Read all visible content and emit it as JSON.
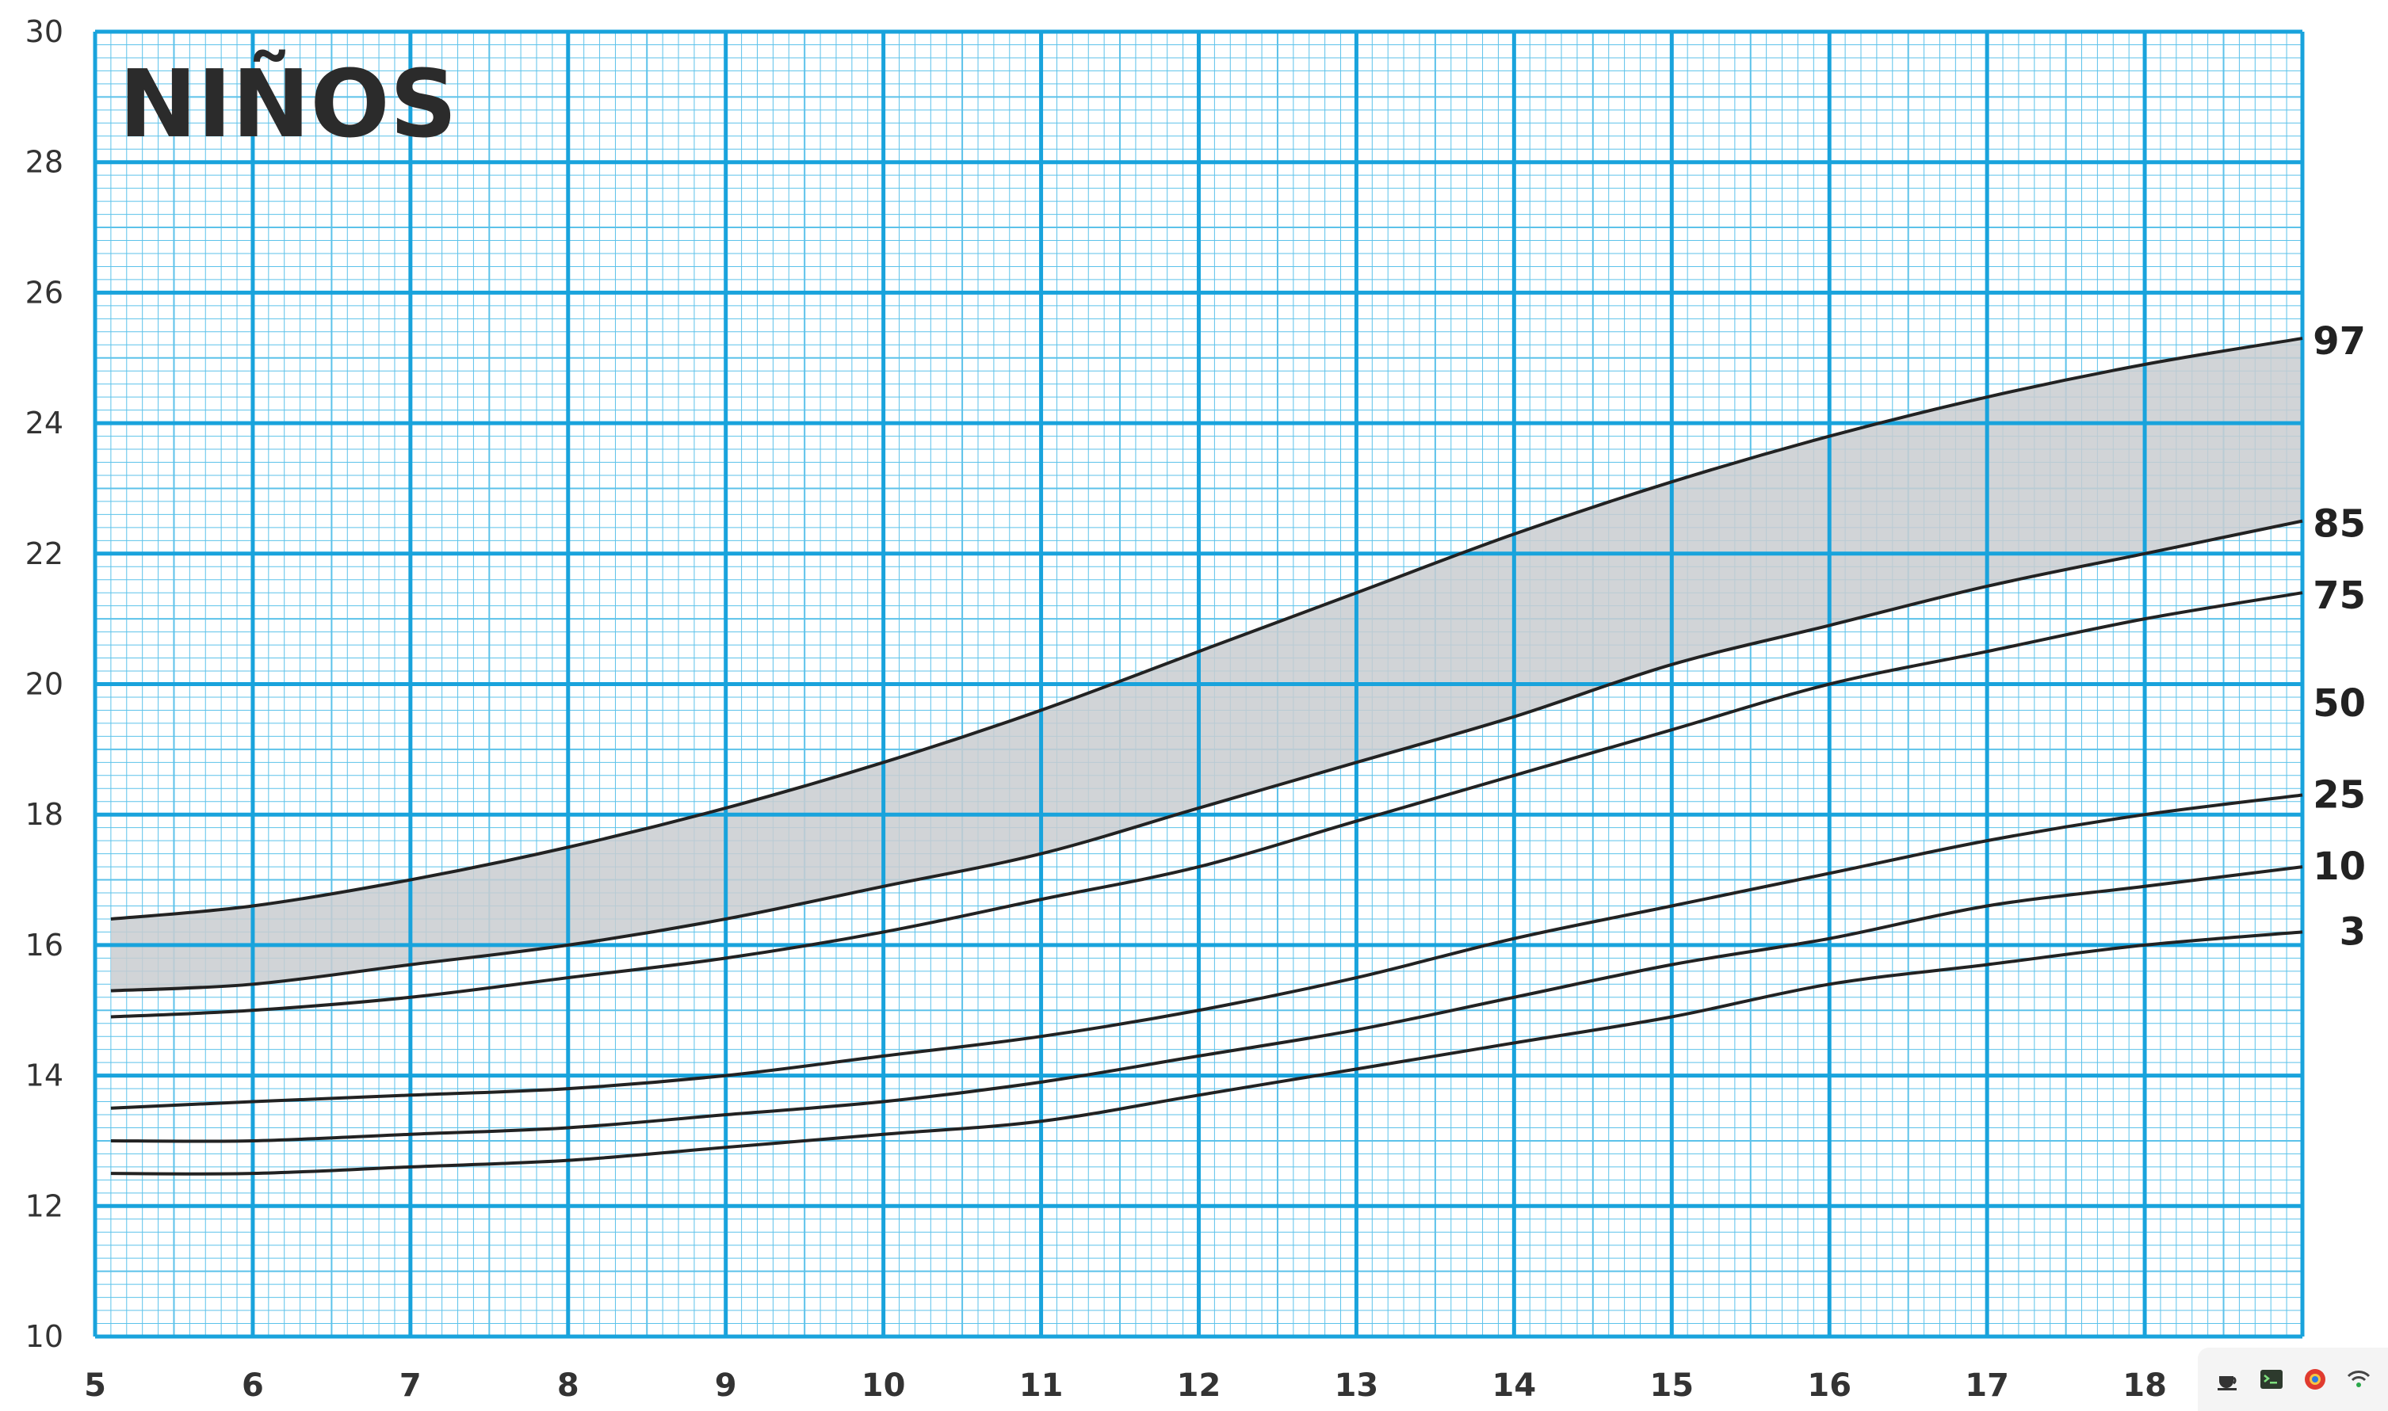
{
  "chart_data": {
    "type": "line",
    "title": "NIÑOS",
    "xlabel": "",
    "ylabel": "",
    "xlim": [
      5,
      19
    ],
    "ylim": [
      10,
      30
    ],
    "x_ticks": [
      "5",
      "6",
      "7",
      "8",
      "9",
      "10",
      "11",
      "12",
      "13",
      "14",
      "15",
      "16",
      "17",
      "18"
    ],
    "y_ticks": [
      "10",
      "12",
      "14",
      "16",
      "18",
      "20",
      "22",
      "24",
      "26",
      "28",
      "30"
    ],
    "grid": true,
    "x": [
      5.1,
      6,
      7,
      8,
      9,
      10,
      11,
      12,
      13,
      14,
      15,
      16,
      17,
      18,
      19
    ],
    "series": [
      {
        "name": "97",
        "values": [
          16.4,
          16.6,
          17.0,
          17.5,
          18.1,
          18.8,
          19.6,
          20.5,
          21.4,
          22.3,
          23.1,
          23.8,
          24.4,
          24.9,
          25.3
        ]
      },
      {
        "name": "85",
        "values": [
          15.3,
          15.4,
          15.7,
          16.0,
          16.4,
          16.9,
          17.4,
          18.1,
          18.8,
          19.5,
          20.3,
          20.9,
          21.5,
          22.0,
          22.5
        ]
      },
      {
        "name": "75",
        "values": [
          14.9,
          15.0,
          15.2,
          15.5,
          15.8,
          16.2,
          16.7,
          17.2,
          17.9,
          18.6,
          19.3,
          20.0,
          20.5,
          21.0,
          21.4
        ]
      },
      {
        "name": "50",
        "values": [
          13.5,
          13.6,
          13.7,
          13.8,
          14.0,
          14.3,
          14.6,
          15.0,
          15.5,
          16.1,
          16.6,
          17.1,
          17.6,
          18.0,
          18.3
        ]
      },
      {
        "name": "25",
        "values": [
          13.0,
          13.0,
          13.1,
          13.2,
          13.4,
          13.6,
          13.9,
          14.3,
          14.7,
          15.2,
          15.7,
          16.1,
          16.6,
          16.9,
          17.2
        ]
      },
      {
        "name": "10",
        "values": [
          12.5,
          12.5,
          12.6,
          12.7,
          12.9,
          13.1,
          13.3,
          13.7,
          14.1,
          14.5,
          14.9,
          15.4,
          15.7,
          16.0,
          16.2
        ]
      }
    ],
    "right_labels": [
      "97",
      "85",
      "75",
      "50",
      "25",
      "10",
      "3"
    ],
    "shaded_band": {
      "upper": "97",
      "lower": "85",
      "color": "#c9ccd0"
    },
    "colors": {
      "grid_major": "#19a3dc",
      "grid_minor": "#5cc2ea",
      "line": "#222222"
    }
  },
  "taskbar": {
    "icons": [
      "tea-cup-icon",
      "terminal-icon",
      "browser-icon",
      "wifi-icon"
    ]
  }
}
